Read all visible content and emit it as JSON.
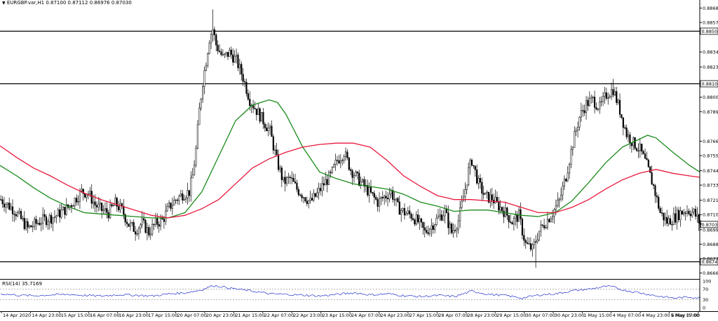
{
  "header": {
    "symbol_timeframe": "EURGBP.var,H1",
    "ohlc": "0.87100 0.87112 0.86976 0.87030"
  },
  "rsi_panel": {
    "label": "RSI(14) 35.7169"
  },
  "colors": {
    "candle": "#000000",
    "ma_fast": "#1a8a1a",
    "ma_slow": "#e8193c",
    "rsi_line": "#2233cc",
    "background": "#ffffff",
    "level_line": "#000000"
  },
  "chart_data": [
    {
      "type": "candlestick",
      "title": "EURGBP.var,H1",
      "ylim": [
        0.8662,
        0.8872
      ],
      "price_ticks": [
        "0.88680",
        "0.88570",
        "0.88345",
        "0.88230",
        "0.88000",
        "0.87890",
        "0.87665",
        "0.87555",
        "0.87440",
        "0.87330",
        "0.87215",
        "0.87105",
        "0.86990",
        "0.86880",
        "0.86770",
        "0.86660"
      ],
      "horizontal_levels": [
        "0.88505",
        "0.88106",
        "0.86747"
      ],
      "current_price_label": "0.87030",
      "time_ticks": [
        "14 Apr 2020",
        "14 Apr 23:00",
        "15 Apr 15:00",
        "16 Apr 07:00",
        "16 Apr 23:00",
        "17 Apr 15:00",
        "20 Apr 07:00",
        "20 Apr 23:00",
        "21 Apr 15:00",
        "22 Apr 07:00",
        "22 Apr 23:00",
        "23 Apr 15:00",
        "24 Apr 07:00",
        "24 Apr 23:00",
        "27 Apr 15:00",
        "28 Apr 07:00",
        "28 Apr 23:00",
        "29 Apr 15:00",
        "30 Apr 07:00",
        "30 Apr 23:00",
        "1 May 15:00",
        "4 May 07:00",
        "4 May 23:00",
        "5 May 15:00",
        "6 May 07:00"
      ],
      "close_path": [
        [
          0,
          0.8722
        ],
        [
          8,
          0.8714
        ],
        [
          16,
          0.87
        ],
        [
          24,
          0.8706
        ],
        [
          32,
          0.8709
        ],
        [
          40,
          0.8716
        ],
        [
          48,
          0.8728
        ],
        [
          52,
          0.8727
        ],
        [
          56,
          0.8718
        ],
        [
          60,
          0.8714
        ],
        [
          64,
          0.8712
        ],
        [
          68,
          0.8719
        ],
        [
          72,
          0.8714
        ],
        [
          76,
          0.8703
        ],
        [
          80,
          0.8699
        ],
        [
          84,
          0.8704
        ],
        [
          88,
          0.8697
        ],
        [
          92,
          0.8704
        ],
        [
          96,
          0.8706
        ],
        [
          100,
          0.8716
        ],
        [
          104,
          0.8722
        ],
        [
          108,
          0.8726
        ],
        [
          112,
          0.8728
        ],
        [
          114,
          0.874
        ],
        [
          116,
          0.876
        ],
        [
          118,
          0.879
        ],
        [
          120,
          0.8812
        ],
        [
          122,
          0.8828
        ],
        [
          124,
          0.8845
        ],
        [
          126,
          0.8852
        ],
        [
          128,
          0.884
        ],
        [
          132,
          0.883
        ],
        [
          136,
          0.8834
        ],
        [
          140,
          0.8828
        ],
        [
          144,
          0.8815
        ],
        [
          148,
          0.8798
        ],
        [
          152,
          0.879
        ],
        [
          156,
          0.8782
        ],
        [
          160,
          0.8774
        ],
        [
          164,
          0.8752
        ],
        [
          168,
          0.8735
        ],
        [
          172,
          0.8738
        ],
        [
          176,
          0.873
        ],
        [
          180,
          0.8725
        ],
        [
          184,
          0.872
        ],
        [
          188,
          0.8726
        ],
        [
          192,
          0.8734
        ],
        [
          196,
          0.874
        ],
        [
          200,
          0.8752
        ],
        [
          204,
          0.8758
        ],
        [
          208,
          0.8745
        ],
        [
          212,
          0.8738
        ],
        [
          216,
          0.8732
        ],
        [
          220,
          0.8726
        ],
        [
          224,
          0.872
        ],
        [
          228,
          0.8724
        ],
        [
          232,
          0.8728
        ],
        [
          236,
          0.8716
        ],
        [
          240,
          0.8712
        ],
        [
          244,
          0.871
        ],
        [
          248,
          0.8705
        ],
        [
          252,
          0.8697
        ],
        [
          256,
          0.8702
        ],
        [
          260,
          0.8708
        ],
        [
          264,
          0.8713
        ],
        [
          266,
          0.8704
        ],
        [
          268,
          0.8697
        ],
        [
          272,
          0.8706
        ],
        [
          276,
          0.873
        ],
        [
          278,
          0.8744
        ],
        [
          280,
          0.8752
        ],
        [
          284,
          0.8734
        ],
        [
          288,
          0.8724
        ],
        [
          292,
          0.8723
        ],
        [
          296,
          0.8717
        ],
        [
          300,
          0.8712
        ],
        [
          304,
          0.8705
        ],
        [
          308,
          0.871
        ],
        [
          310,
          0.8698
        ],
        [
          312,
          0.8688
        ],
        [
          316,
          0.8684
        ],
        [
          320,
          0.8698
        ],
        [
          324,
          0.8705
        ],
        [
          328,
          0.8712
        ],
        [
          332,
          0.8721
        ],
        [
          336,
          0.874
        ],
        [
          340,
          0.8765
        ],
        [
          344,
          0.8785
        ],
        [
          348,
          0.8795
        ],
        [
          352,
          0.8798
        ],
        [
          356,
          0.8792
        ],
        [
          360,
          0.8802
        ],
        [
          364,
          0.8806
        ],
        [
          368,
          0.879
        ],
        [
          372,
          0.8772
        ],
        [
          376,
          0.8765
        ],
        [
          380,
          0.876
        ],
        [
          384,
          0.8748
        ],
        [
          388,
          0.8732
        ],
        [
          392,
          0.8712
        ],
        [
          396,
          0.8705
        ],
        [
          400,
          0.8708
        ],
        [
          404,
          0.8712
        ],
        [
          408,
          0.8714
        ],
        [
          412,
          0.8712
        ],
        [
          416,
          0.8703
        ]
      ],
      "series": [
        {
          "name": "",
          "color_key": "ma_fast",
          "points": [
            [
              0,
              0.8748
            ],
            [
              10,
              0.874
            ],
            [
              20,
              0.8731
            ],
            [
              30,
              0.8723
            ],
            [
              40,
              0.8717
            ],
            [
              50,
              0.8712
            ],
            [
              60,
              0.8711
            ],
            [
              70,
              0.871
            ],
            [
              80,
              0.8709
            ],
            [
              90,
              0.8708
            ],
            [
              100,
              0.8708
            ],
            [
              110,
              0.8712
            ],
            [
              120,
              0.8728
            ],
            [
              130,
              0.8755
            ],
            [
              140,
              0.8782
            ],
            [
              150,
              0.8794
            ],
            [
              160,
              0.8798
            ],
            [
              165,
              0.8796
            ],
            [
              170,
              0.8787
            ],
            [
              180,
              0.8762
            ],
            [
              190,
              0.8743
            ],
            [
              200,
              0.8738
            ],
            [
              210,
              0.8734
            ],
            [
              220,
              0.8732
            ],
            [
              230,
              0.873
            ],
            [
              240,
              0.8726
            ],
            [
              250,
              0.872
            ],
            [
              260,
              0.8717
            ],
            [
              270,
              0.8713
            ],
            [
              280,
              0.8714
            ],
            [
              290,
              0.8714
            ],
            [
              300,
              0.8712
            ],
            [
              310,
              0.871
            ],
            [
              320,
              0.8709
            ],
            [
              330,
              0.8712
            ],
            [
              340,
              0.8721
            ],
            [
              350,
              0.8735
            ],
            [
              360,
              0.875
            ],
            [
              370,
              0.8762
            ],
            [
              380,
              0.8768
            ],
            [
              385,
              0.8771
            ],
            [
              390,
              0.8769
            ],
            [
              400,
              0.8758
            ],
            [
              410,
              0.8748
            ],
            [
              416,
              0.8743
            ]
          ]
        },
        {
          "name": "",
          "color_key": "ma_slow",
          "points": [
            [
              0,
              0.8763
            ],
            [
              10,
              0.8754
            ],
            [
              20,
              0.8746
            ],
            [
              30,
              0.874
            ],
            [
              40,
              0.8733
            ],
            [
              50,
              0.8727
            ],
            [
              60,
              0.8722
            ],
            [
              70,
              0.8718
            ],
            [
              80,
              0.8714
            ],
            [
              90,
              0.871
            ],
            [
              100,
              0.8708
            ],
            [
              110,
              0.871
            ],
            [
              120,
              0.8715
            ],
            [
              130,
              0.8722
            ],
            [
              140,
              0.8734
            ],
            [
              150,
              0.8746
            ],
            [
              160,
              0.8753
            ],
            [
              170,
              0.8758
            ],
            [
              180,
              0.8762
            ],
            [
              190,
              0.8764
            ],
            [
              200,
              0.8765
            ],
            [
              210,
              0.8765
            ],
            [
              220,
              0.8762
            ],
            [
              230,
              0.8752
            ],
            [
              240,
              0.874
            ],
            [
              250,
              0.8732
            ],
            [
              260,
              0.8725
            ],
            [
              270,
              0.8722
            ],
            [
              280,
              0.8722
            ],
            [
              290,
              0.8721
            ],
            [
              300,
              0.872
            ],
            [
              310,
              0.8716
            ],
            [
              320,
              0.8712
            ],
            [
              330,
              0.8712
            ],
            [
              340,
              0.8716
            ],
            [
              350,
              0.8722
            ],
            [
              360,
              0.873
            ],
            [
              370,
              0.8737
            ],
            [
              380,
              0.8742
            ],
            [
              390,
              0.8745
            ],
            [
              400,
              0.8742
            ],
            [
              410,
              0.874
            ],
            [
              416,
              0.8739
            ]
          ]
        }
      ]
    },
    {
      "type": "line",
      "title": "RSI(14) 35.7169",
      "ylim": [
        0,
        100
      ],
      "y_ticks": [
        "100",
        "70",
        "30",
        "0"
      ],
      "levels": [
        70,
        30
      ],
      "series": [
        {
          "name": "RSI(14)",
          "color_key": "rsi_line",
          "points": [
            [
              0,
              52
            ],
            [
              10,
              47
            ],
            [
              20,
              45
            ],
            [
              30,
              48
            ],
            [
              40,
              50
            ],
            [
              50,
              46
            ],
            [
              60,
              44
            ],
            [
              70,
              49
            ],
            [
              80,
              47
            ],
            [
              90,
              44
            ],
            [
              100,
              52
            ],
            [
              110,
              56
            ],
            [
              120,
              68
            ],
            [
              126,
              83
            ],
            [
              130,
              80
            ],
            [
              140,
              70
            ],
            [
              150,
              62
            ],
            [
              160,
              52
            ],
            [
              170,
              50
            ],
            [
              180,
              47
            ],
            [
              190,
              44
            ],
            [
              200,
              50
            ],
            [
              210,
              56
            ],
            [
              220,
              48
            ],
            [
              230,
              52
            ],
            [
              240,
              45
            ],
            [
              250,
              42
            ],
            [
              260,
              46
            ],
            [
              270,
              42
            ],
            [
              280,
              62
            ],
            [
              290,
              50
            ],
            [
              300,
              46
            ],
            [
              310,
              36
            ],
            [
              320,
              48
            ],
            [
              330,
              52
            ],
            [
              340,
              64
            ],
            [
              350,
              70
            ],
            [
              360,
              80
            ],
            [
              364,
              78
            ],
            [
              370,
              66
            ],
            [
              380,
              56
            ],
            [
              390,
              44
            ],
            [
              400,
              36
            ],
            [
              410,
              40
            ],
            [
              416,
              36
            ]
          ]
        }
      ]
    }
  ]
}
